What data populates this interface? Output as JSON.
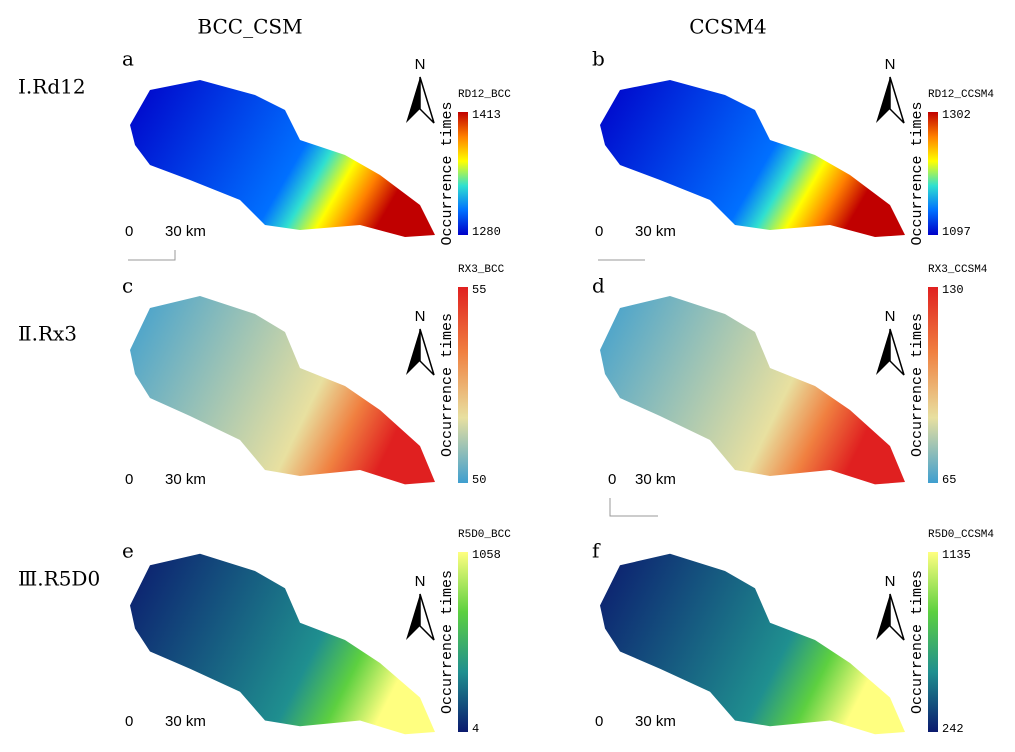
{
  "columns": [
    "BCC_CSM",
    "CCSM4"
  ],
  "rows": [
    "Ⅰ.Rd12",
    "Ⅱ.Rx3",
    "Ⅲ.R5D0"
  ],
  "colorbar_label": "Occurrence times",
  "north": "N",
  "scale_zero": "0",
  "scale_km": "30 km",
  "panels": [
    {
      "letter": "a",
      "legend_title": "RD12_BCC",
      "max": "1413",
      "min": "1280",
      "colors": [
        "#0000c8",
        "#0070ff",
        "#30e0d0",
        "#ffff00",
        "#ff8000",
        "#c00000"
      ]
    },
    {
      "letter": "b",
      "legend_title": "RD12_CCSM4",
      "max": "1302",
      "min": "1097",
      "colors": [
        "#0000c8",
        "#0070ff",
        "#30e0d0",
        "#ffff00",
        "#ff8000",
        "#c00000"
      ]
    },
    {
      "letter": "c",
      "legend_title": "RX3_BCC",
      "max": "55",
      "min": "50",
      "colors": [
        "#3f9fcf",
        "#e8e0a0",
        "#f08040",
        "#e02020"
      ]
    },
    {
      "letter": "d",
      "legend_title": "RX3_CCSM4",
      "max": "130",
      "min": "65",
      "colors": [
        "#3f9fcf",
        "#e8e0a0",
        "#f08040",
        "#e02020"
      ]
    },
    {
      "letter": "e",
      "legend_title": "R5D0_BCC",
      "max": "1058",
      "min": "4",
      "colors": [
        "#0b1a6e",
        "#1f8f8f",
        "#5dd040",
        "#ffff80"
      ]
    },
    {
      "letter": "f",
      "legend_title": "R5D0_CCSM4",
      "max": "1135",
      "min": "242",
      "colors": [
        "#0b1a6e",
        "#1f8f8f",
        "#5dd040",
        "#ffff80"
      ]
    }
  ]
}
